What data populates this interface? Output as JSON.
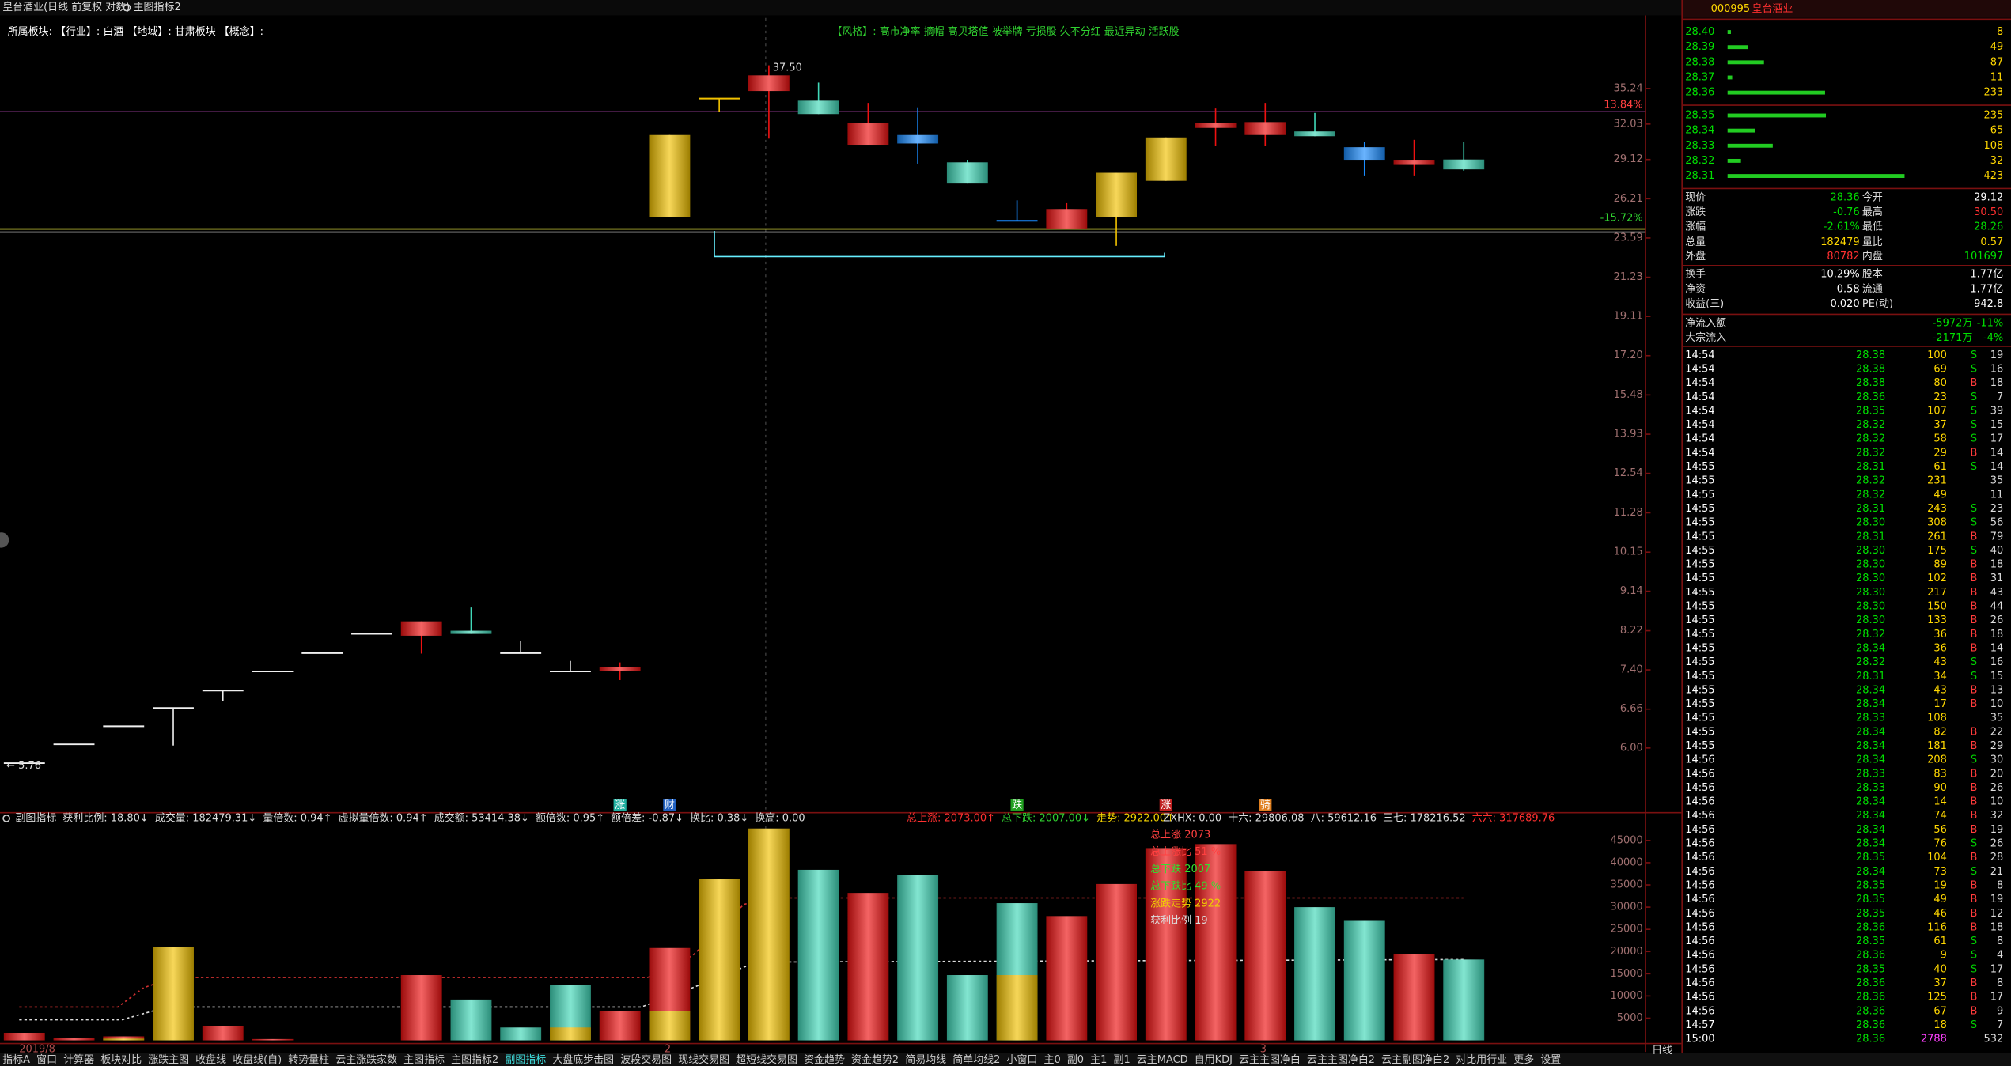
{
  "title_bar": {
    "title": "皇台酒业(日线 前复权 对数)",
    "indicator": "主图指标2"
  },
  "sector_line": "所属板块: 【行业】: 白酒 【地域】: 甘肃板块 【概念】:",
  "style_tags": "【风格】: 高市净率 摘帽 高贝塔值 被举牌 亏损股 久不分红 最近异动 活跃股",
  "range_labels": [
    {
      "text": "13.84%",
      "color": "#ff4040"
    },
    {
      "text": "-15.72%",
      "color": "#30d030"
    }
  ],
  "chart_data": [
    {
      "type": "candlestick",
      "log_scale": true,
      "ylim": [
        5.07,
        40.3
      ],
      "yticks": [
        35.24,
        32.03,
        29.12,
        26.21,
        23.59,
        21.23,
        19.11,
        {
          "value": 17.2,
          "label": "17.20"
        },
        15.48,
        13.93,
        12.54,
        11.28,
        10.15,
        9.14,
        8.22,
        {
          "value": 7.4,
          "label": "7.40"
        },
        6.66,
        {
          "value": 6,
          "label": "6.00"
        }
      ],
      "categories": [
        "2019/8",
        null,
        null,
        null,
        null,
        null,
        null,
        null,
        null,
        null,
        null,
        null,
        null,
        "2",
        null,
        null,
        null,
        null,
        null,
        null,
        null,
        null,
        null,
        null,
        null,
        "3",
        null,
        null,
        null,
        null
      ],
      "open": [
        5.76,
        6.06,
        6.36,
        6.68,
        7.0,
        7.37,
        7.74,
        8.15,
        8.11,
        8.22,
        7.74,
        7.37,
        7.37,
        24.96,
        34.3,
        35.0,
        34.1,
        30.3,
        31.1,
        28.9,
        24.7,
        24.2,
        24.96,
        27.5,
        31.7,
        31.1,
        31.4,
        30.1,
        28.7,
        29.12
      ],
      "high": [
        5.76,
        6.06,
        6.36,
        6.68,
        7.0,
        7.37,
        7.74,
        8.15,
        8.43,
        8.75,
        7.99,
        7.58,
        7.55,
        31.1,
        34.3,
        37.5,
        35.8,
        33.9,
        33.5,
        29.1,
        26.1,
        25.9,
        28.1,
        30.9,
        33.4,
        33.9,
        33.0,
        30.5,
        30.7,
        30.5
      ],
      "low": [
        5.76,
        6.06,
        6.36,
        6.04,
        6.8,
        7.37,
        7.74,
        8.15,
        7.73,
        8.15,
        7.74,
        7.37,
        7.2,
        24.96,
        33.1,
        30.8,
        32.9,
        30.3,
        28.8,
        27.3,
        24.7,
        24.2,
        23.1,
        27.5,
        30.2,
        30.2,
        31.0,
        27.9,
        27.9,
        28.26
      ],
      "close": [
        5.76,
        6.06,
        6.36,
        6.68,
        7.0,
        7.37,
        7.74,
        8.15,
        8.43,
        8.15,
        7.74,
        7.37,
        7.45,
        31.1,
        34.3,
        36.5,
        32.9,
        32.1,
        30.4,
        27.3,
        24.7,
        25.5,
        28.1,
        30.9,
        32.1,
        32.2,
        31.0,
        29.1,
        29.1,
        28.36
      ],
      "colors": [
        "#f0f0f0",
        "#f0f0f0",
        "#f0f0f0",
        "#f0f0f0",
        "#f0f0f0",
        "#f0f0f0",
        "#f0f0f0",
        "#f0f0f0",
        "#ee1111",
        "#40d8b8",
        "#f0f0f0",
        "#f0f0f0",
        "#ee1111",
        "#f2c200",
        "#f2c200",
        "#ee1111",
        "#40d8b8",
        "#ee1111",
        "#1a8cff",
        "#40d8b8",
        "#1a8cff",
        "#ee1111",
        "#f2c200",
        "#f2c200",
        "#ee1111",
        "#ee1111",
        "#40d8b8",
        "#1a8cff",
        "#ee1111",
        "#40d8b8"
      ],
      "annotations": [
        {
          "index": 0,
          "value": 5.76,
          "label": "← 5.76"
        },
        {
          "index": 15,
          "value": 37.5,
          "label": "37.50"
        }
      ],
      "signals": [
        {
          "index": 12,
          "label": "涨",
          "color": "#20b0a0"
        },
        {
          "index": 13,
          "label": "财",
          "color": "#2060c0"
        },
        {
          "index": 20,
          "label": "跌",
          "color": "#20a020"
        },
        {
          "index": 23,
          "label": "涨",
          "color": "#c02020"
        },
        {
          "index": 25,
          "label": "骑",
          "color": "#e08020"
        }
      ]
    },
    {
      "type": "bar",
      "ylim": [
        0,
        49400
      ],
      "yticks": [
        5000,
        10000,
        15000,
        20000,
        25000,
        30000,
        35000,
        40000,
        45000
      ],
      "values": [
        1700,
        500,
        900,
        21100,
        3200,
        300,
        0,
        0,
        14700,
        9200,
        2900,
        12400,
        6600,
        20800,
        36400,
        47700,
        38400,
        33200,
        37300,
        14700,
        30900,
        28000,
        35200,
        43300,
        44200,
        38200,
        30000,
        26900,
        19400,
        18200
      ],
      "colors": [
        "#ee1111",
        "#ee1111",
        "#ee1111",
        "#f2c200",
        "#ee1111",
        "#ee1111",
        "#ee1111",
        "#ee1111",
        "#ee1111",
        "#40d8b8",
        "#40d8b8",
        "#40d8b8",
        "#ee1111",
        "#ee1111",
        "#f2c200",
        "#f2c200",
        "#40d8b8",
        "#ee1111",
        "#40d8b8",
        "#40d8b8",
        "#40d8b8",
        "#ee1111",
        "#ee1111",
        "#ee1111",
        "#ee1111",
        "#ee1111",
        "#40d8b8",
        "#40d8b8",
        "#ee1111",
        "#40d8b8"
      ],
      "inner_values": [
        null,
        null,
        400,
        null,
        null,
        null,
        null,
        null,
        null,
        null,
        null,
        2900,
        null,
        6600,
        null,
        null,
        null,
        null,
        null,
        null,
        14700,
        null,
        null,
        null,
        null,
        null,
        null,
        null,
        null,
        null
      ],
      "inner_color": "#f2c200"
    }
  ],
  "indicator_header": [
    [
      {
        "text": "副图指标",
        "color": "#dddddd"
      },
      {
        "text": "获利比例: 18.80↓",
        "color": "#dddddd"
      },
      {
        "text": "成交量: 182479.31↓",
        "color": "#dddddd"
      },
      {
        "text": "量倍数: 0.94↑",
        "color": "#dddddd"
      },
      {
        "text": "虚拟量倍数: 0.94↑",
        "color": "#dddddd"
      },
      {
        "text": "成交额: 53414.38↓",
        "color": "#dddddd"
      },
      {
        "text": "额倍数: 0.95↑",
        "color": "#dddddd"
      },
      {
        "text": "额倍差: -0.87↓",
        "color": "#dddddd"
      },
      {
        "text": "换比: 0.38↓",
        "color": "#dddddd"
      },
      {
        "text": "换高: 0.00",
        "color": "#dddddd"
      }
    ],
    [
      {
        "text": "总上涨: 2073.00↑",
        "color": "#ff3030"
      },
      {
        "text": "总下跌: 2007.00↓",
        "color": "#30d030"
      },
      {
        "text": "走势: 2922.00↑",
        "color": "#f0d000"
      }
    ],
    [
      {
        "text": "ZXHX: 0.00",
        "color": "#dddddd"
      },
      {
        "text": "十六: 29806.08",
        "color": "#dddddd"
      },
      {
        "text": "八: 59612.16",
        "color": "#dddddd"
      },
      {
        "text": "三七: 178216.52",
        "color": "#dddddd"
      },
      {
        "text": "六六: 317689.76",
        "color": "#ff3030"
      }
    ]
  ],
  "overlay_labels": [
    {
      "text": "总上涨 2073",
      "color": "#ff4040"
    },
    {
      "text": "总上涨比 51 %",
      "color": "#ff4040"
    },
    {
      "text": "总下跌 2007",
      "color": "#30e030"
    },
    {
      "text": "总下跌比 49 %",
      "color": "#30e030"
    },
    {
      "text": "涨跌走势 2922",
      "color": "#f0d000"
    },
    {
      "text": "获利比例 19",
      "color": "#dddddd"
    }
  ],
  "stock": {
    "code": "000995",
    "name": "皇台酒业"
  },
  "order_book": {
    "price_color": "#00e000",
    "bar_color": "#22cc22",
    "asks": [
      {
        "price": "28.40",
        "volume": 8
      },
      {
        "price": "28.39",
        "volume": 49
      },
      {
        "price": "28.38",
        "volume": 87
      },
      {
        "price": "28.37",
        "volume": 11
      },
      {
        "price": "28.36",
        "volume": 233
      }
    ],
    "bids": [
      {
        "price": "28.35",
        "volume": 235
      },
      {
        "price": "28.34",
        "volume": 65
      },
      {
        "price": "28.33",
        "volume": 108
      },
      {
        "price": "28.32",
        "volume": 32
      },
      {
        "price": "28.31",
        "volume": 423
      }
    ]
  },
  "quote": [
    {
      "cells": [
        "现价",
        "28.36",
        "今开",
        "29.12"
      ],
      "colors": [
        "#00e000",
        "#ffffff"
      ]
    },
    {
      "cells": [
        "涨跌",
        "-0.76",
        "最高",
        "30.50"
      ],
      "colors": [
        "#00e000",
        "#ff3030"
      ]
    },
    {
      "cells": [
        "涨幅",
        "-2.61%",
        "最低",
        "28.26"
      ],
      "colors": [
        "#00e000",
        "#00e000"
      ]
    },
    {
      "cells": [
        "总量",
        "182479",
        "量比",
        "0.57"
      ],
      "colors": [
        "#ffd700",
        "#ffd700"
      ]
    },
    {
      "cells": [
        "外盘",
        "80782",
        "内盘",
        "101697"
      ],
      "colors": [
        "#ff3030",
        "#00e000"
      ]
    },
    {
      "cells": [
        "换手",
        "10.29%",
        "股本",
        "1.77亿"
      ],
      "colors": [
        "#ffffff",
        "#ffffff"
      ]
    },
    {
      "cells": [
        "净资",
        "0.58",
        "流通",
        "1.77亿"
      ],
      "colors": [
        "#ffffff",
        "#ffffff"
      ]
    },
    {
      "cells": [
        "收益(三)",
        "0.020",
        "PE(动)",
        "942.8"
      ],
      "colors": [
        "#ffffff",
        "#ffffff"
      ]
    }
  ],
  "flows": [
    {
      "cells": [
        "净流入额",
        "-5972万",
        "-11%"
      ],
      "color": "#00e000"
    },
    {
      "cells": [
        "大宗流入",
        "-2171万",
        "-4%"
      ],
      "color": "#00e000"
    }
  ],
  "ticks": [
    [
      "14:54",
      "28.38",
      "100",
      "S",
      "19"
    ],
    [
      "14:54",
      "28.38",
      "69",
      "S",
      "16"
    ],
    [
      "14:54",
      "28.38",
      "80",
      "B",
      "18"
    ],
    [
      "14:54",
      "28.36",
      "23",
      "S",
      "7"
    ],
    [
      "14:54",
      "28.35",
      "107",
      "S",
      "39"
    ],
    [
      "14:54",
      "28.32",
      "37",
      "S",
      "15"
    ],
    [
      "14:54",
      "28.32",
      "58",
      "S",
      "17"
    ],
    [
      "14:54",
      "28.32",
      "29",
      "B",
      "14"
    ],
    [
      "14:55",
      "28.31",
      "61",
      "S",
      "14"
    ],
    [
      "14:55",
      "28.32",
      "231",
      null,
      "35"
    ],
    [
      "14:55",
      "28.32",
      "49",
      null,
      "11"
    ],
    [
      "14:55",
      "28.31",
      "243",
      "S",
      "23"
    ],
    [
      "14:55",
      "28.30",
      "308",
      "S",
      "56"
    ],
    [
      "14:55",
      "28.31",
      "261",
      "B",
      "79"
    ],
    [
      "14:55",
      "28.30",
      "175",
      "S",
      "40"
    ],
    [
      "14:55",
      "28.30",
      "89",
      "B",
      "18"
    ],
    [
      "14:55",
      "28.30",
      "102",
      "B",
      "31"
    ],
    [
      "14:55",
      "28.30",
      "217",
      "B",
      "43"
    ],
    [
      "14:55",
      "28.30",
      "150",
      "B",
      "44"
    ],
    [
      "14:55",
      "28.30",
      "133",
      "B",
      "26"
    ],
    [
      "14:55",
      "28.32",
      "36",
      "B",
      "18"
    ],
    [
      "14:55",
      "28.34",
      "36",
      "B",
      "14"
    ],
    [
      "14:55",
      "28.32",
      "43",
      "S",
      "16"
    ],
    [
      "14:55",
      "28.31",
      "34",
      "S",
      "15"
    ],
    [
      "14:55",
      "28.34",
      "43",
      "B",
      "13"
    ],
    [
      "14:55",
      "28.34",
      "17",
      "B",
      "10"
    ],
    [
      "14:55",
      "28.33",
      "108",
      null,
      "35"
    ],
    [
      "14:55",
      "28.34",
      "82",
      "B",
      "22"
    ],
    [
      "14:55",
      "28.34",
      "181",
      "B",
      "29"
    ],
    [
      "14:56",
      "28.34",
      "208",
      "S",
      "30"
    ],
    [
      "14:56",
      "28.33",
      "83",
      "B",
      "20"
    ],
    [
      "14:56",
      "28.33",
      "90",
      "B",
      "26"
    ],
    [
      "14:56",
      "28.34",
      "14",
      "B",
      "10"
    ],
    [
      "14:56",
      "28.34",
      "74",
      "B",
      "32"
    ],
    [
      "14:56",
      "28.34",
      "56",
      "B",
      "19"
    ],
    [
      "14:56",
      "28.34",
      "76",
      "S",
      "26"
    ],
    [
      "14:56",
      "28.35",
      "104",
      "B",
      "28"
    ],
    [
      "14:56",
      "28.34",
      "73",
      "S",
      "21"
    ],
    [
      "14:56",
      "28.35",
      "19",
      "B",
      "8"
    ],
    [
      "14:56",
      "28.35",
      "49",
      "B",
      "19"
    ],
    [
      "14:56",
      "28.35",
      "46",
      "B",
      "12"
    ],
    [
      "14:56",
      "28.36",
      "116",
      "B",
      "18"
    ],
    [
      "14:56",
      "28.35",
      "61",
      "S",
      "8"
    ],
    [
      "14:56",
      "28.36",
      "9",
      "S",
      "4"
    ],
    [
      "14:56",
      "28.35",
      "40",
      "S",
      "17"
    ],
    [
      "14:56",
      "28.36",
      "37",
      "B",
      "8"
    ],
    [
      "14:56",
      "28.36",
      "125",
      "B",
      "17"
    ],
    [
      "14:56",
      "28.36",
      "67",
      "B",
      "9"
    ],
    [
      "14:57",
      "28.36",
      "18",
      "S",
      "7"
    ],
    [
      "15:00",
      "28.36",
      "2788",
      null,
      "532"
    ]
  ],
  "tabs": [
    "指标A",
    "窗口",
    "计算器",
    "板块对比",
    "涨跌主图",
    "收盘线",
    "收盘线(自)",
    "转势量柱",
    "云主涨跌家数",
    "主图指标",
    "主图指标2",
    "副图指标",
    "大盘底步击图",
    "波段交易图",
    "现线交易图",
    "超短线交易图",
    "资金趋势",
    "资金趋势2",
    "简易均线",
    "简单均线2",
    "小窗口",
    "主0",
    "副0",
    "主1",
    "副1",
    "云主MACD",
    "自用KDJ",
    "云主主图净白",
    "云主主图净白2",
    "云主副图净白2",
    "对比用行业",
    "更多",
    "设置"
  ],
  "active_tab": 11,
  "period": "日线"
}
